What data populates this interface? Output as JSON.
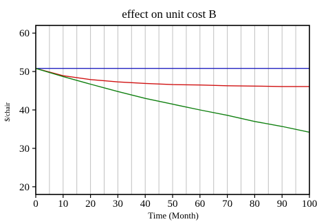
{
  "chart_data": {
    "type": "line",
    "title": "effect on unit cost B",
    "xlabel": "Time (Month)",
    "ylabel": "$/chair",
    "xlim": [
      0,
      100
    ],
    "ylim": [
      18,
      62
    ],
    "xticks": [
      0,
      10,
      20,
      30,
      40,
      50,
      60,
      70,
      80,
      90,
      100
    ],
    "yticks": [
      20,
      30,
      40,
      50,
      60
    ],
    "grid": "vertical",
    "series": [
      {
        "color": "#1f1fbf",
        "x": [
          0,
          100
        ],
        "y": [
          50.8,
          50.8
        ]
      },
      {
        "color": "#d01010",
        "x": [
          0,
          10,
          20,
          30,
          40,
          50,
          60,
          70,
          80,
          90,
          100
        ],
        "y": [
          50.8,
          48.9,
          47.9,
          47.3,
          46.9,
          46.6,
          46.5,
          46.3,
          46.2,
          46.1,
          46.1
        ]
      },
      {
        "color": "#108010",
        "x": [
          0,
          10,
          20,
          30,
          40,
          50,
          60,
          70,
          80,
          90,
          100
        ],
        "y": [
          50.8,
          48.7,
          46.7,
          44.8,
          43.0,
          41.5,
          40.0,
          38.6,
          37.0,
          35.7,
          34.2
        ]
      }
    ]
  }
}
